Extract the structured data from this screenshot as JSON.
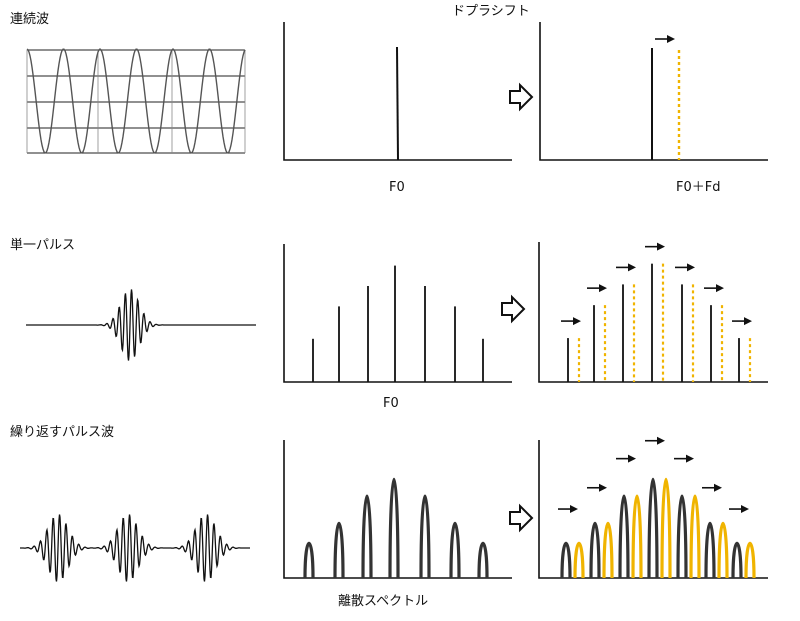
{
  "labels": {
    "title": "ドプラシフト",
    "row1": "連続波",
    "row2": "単一パルス",
    "row3": "繰り返すパルス波",
    "f0_top": "F0",
    "f0_shift": "F0＋Fd",
    "f0_mid": "F0",
    "discrete": "離散スペクトル"
  },
  "colors": {
    "line": "#111111",
    "shifted": "#f0b400",
    "wave": "#111111",
    "grid": "#222222"
  },
  "spectra": {
    "single_pulse_relative_heights": [
      0.36,
      0.63,
      0.8,
      0.97,
      0.8,
      0.63,
      0.36
    ],
    "repeated_pulse_relative_heights": [
      0.33,
      0.52,
      0.78,
      0.94,
      0.78,
      0.52,
      0.33
    ]
  },
  "icons": {
    "shift_arrow": "right-arrow-icon",
    "transform": "hollow-right-arrow-icon"
  }
}
